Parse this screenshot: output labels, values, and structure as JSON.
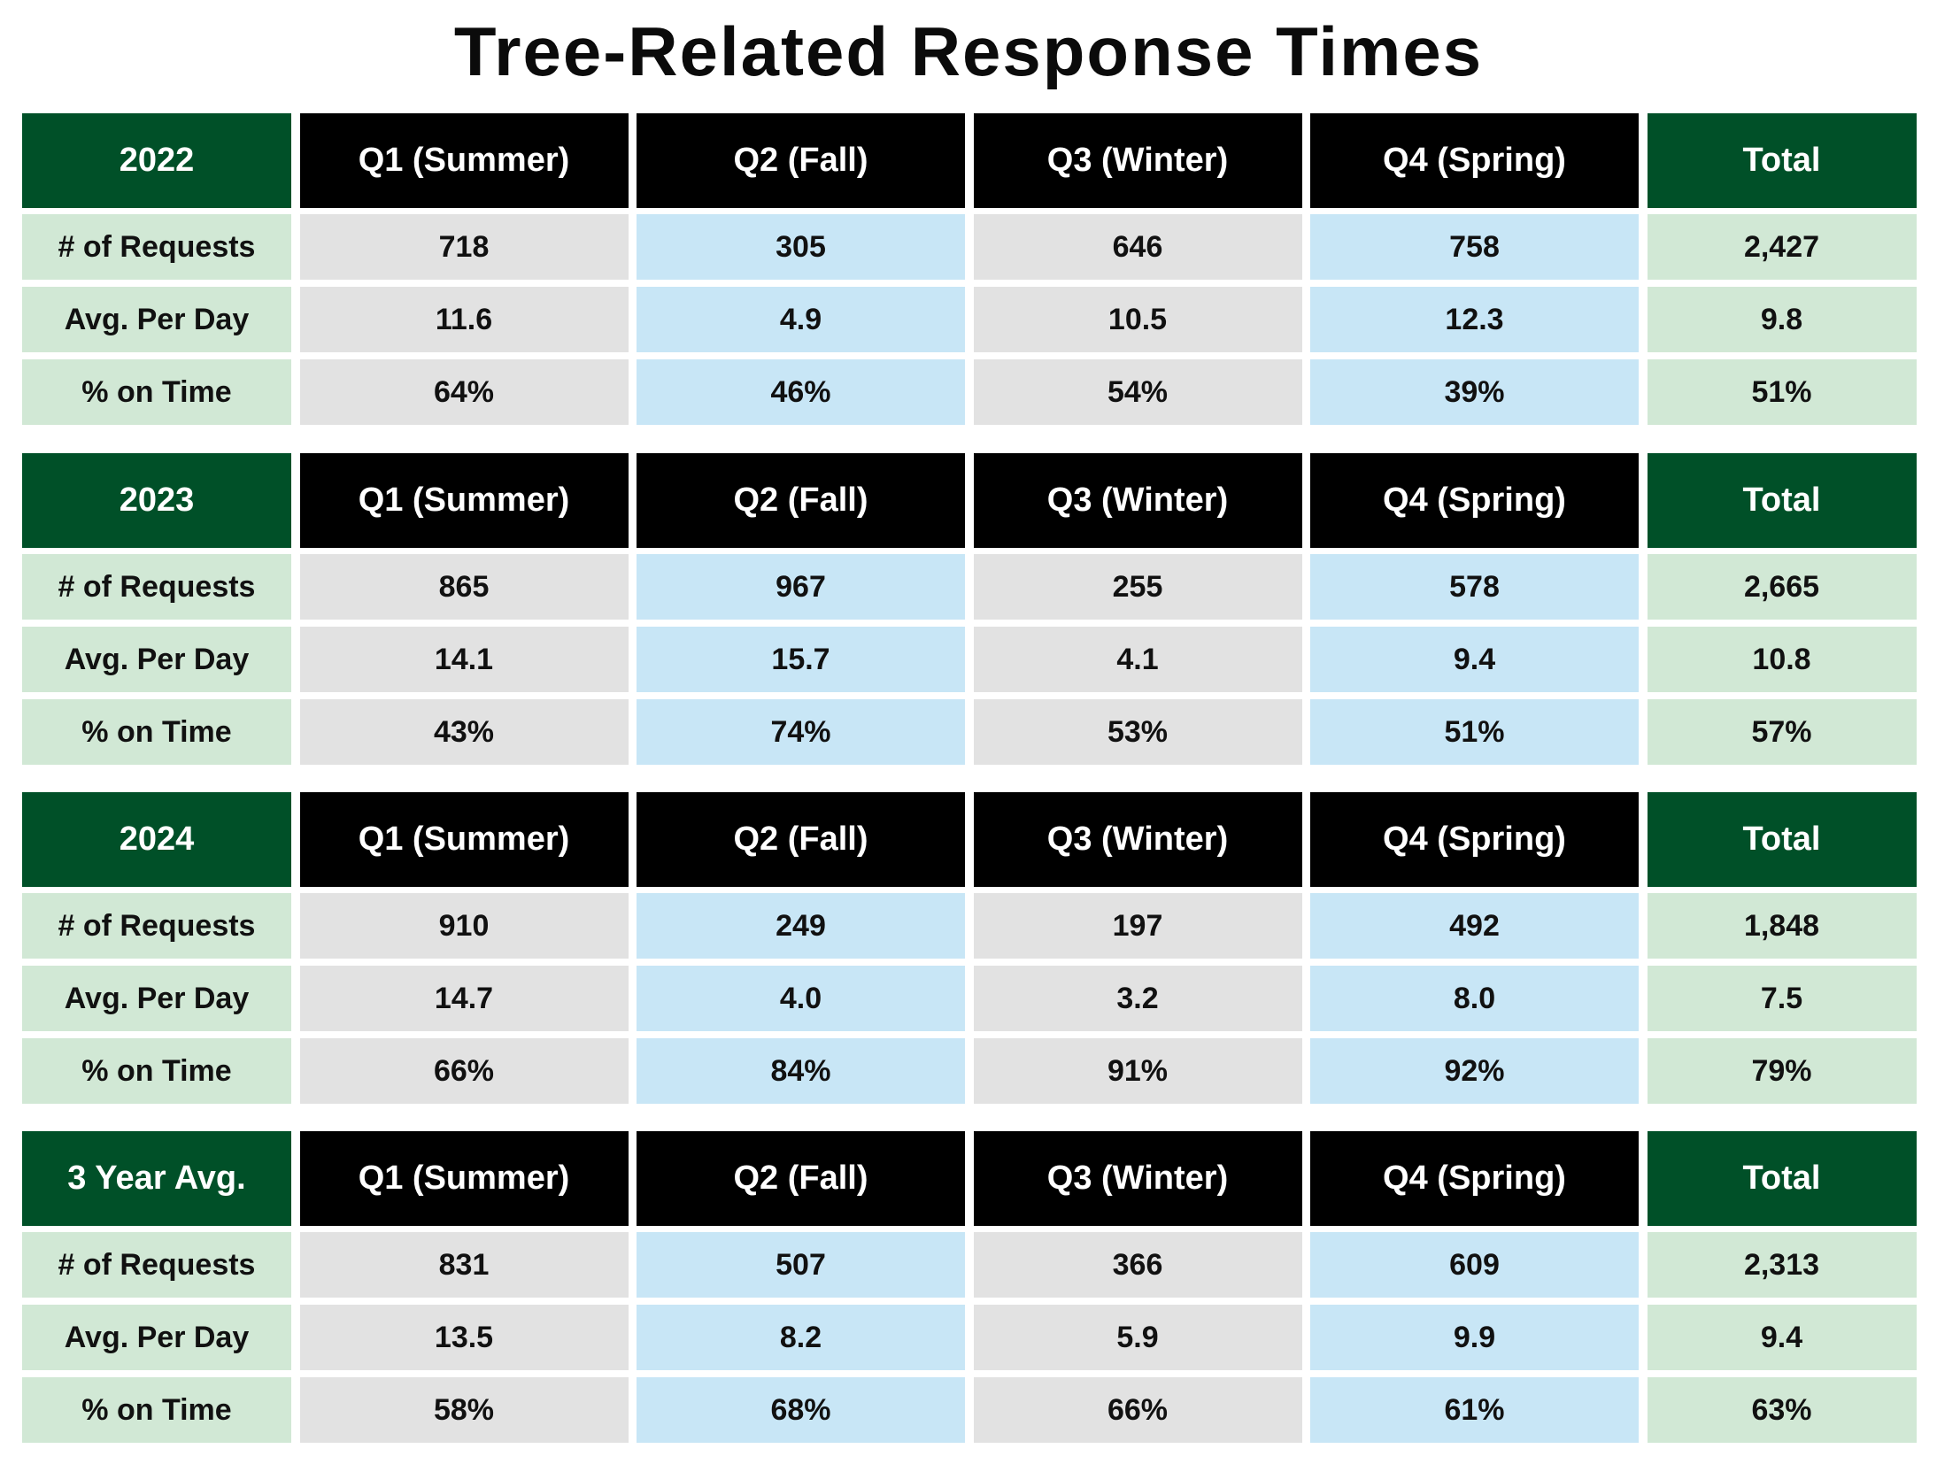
{
  "title": "Tree-Related Response Times",
  "colors": {
    "year_header_bg": "#005028",
    "quarter_header_bg": "#000000",
    "row_label_bg": "#d1e8d5",
    "odd_quarter_bg": "#e2e2e2",
    "even_quarter_bg": "#c8e6f6",
    "total_bg": "#d1e8d5"
  },
  "tables": [
    {
      "header": [
        "2022",
        "Q1 (Summer)",
        "Q2 (Fall)",
        "Q3 (Winter)",
        "Q4 (Spring)",
        "Total"
      ],
      "rows": [
        [
          "# of Requests",
          "718",
          "305",
          "646",
          "758",
          "2,427"
        ],
        [
          "Avg. Per Day",
          "11.6",
          "4.9",
          "10.5",
          "12.3",
          "9.8"
        ],
        [
          "% on Time",
          "64%",
          "46%",
          "54%",
          "39%",
          "51%"
        ]
      ]
    },
    {
      "header": [
        "2023",
        "Q1 (Summer)",
        "Q2 (Fall)",
        "Q3 (Winter)",
        "Q4 (Spring)",
        "Total"
      ],
      "rows": [
        [
          "# of Requests",
          "865",
          "967",
          "255",
          "578",
          "2,665"
        ],
        [
          "Avg. Per Day",
          "14.1",
          "15.7",
          "4.1",
          "9.4",
          "10.8"
        ],
        [
          "% on Time",
          "43%",
          "74%",
          "53%",
          "51%",
          "57%"
        ]
      ]
    },
    {
      "header": [
        "2024",
        "Q1 (Summer)",
        "Q2 (Fall)",
        "Q3 (Winter)",
        "Q4 (Spring)",
        "Total"
      ],
      "rows": [
        [
          "# of Requests",
          "910",
          "249",
          "197",
          "492",
          "1,848"
        ],
        [
          "Avg. Per Day",
          "14.7",
          "4.0",
          "3.2",
          "8.0",
          "7.5"
        ],
        [
          "% on Time",
          "66%",
          "84%",
          "91%",
          "92%",
          "79%"
        ]
      ]
    },
    {
      "header": [
        "3 Year Avg.",
        "Q1 (Summer)",
        "Q2 (Fall)",
        "Q3 (Winter)",
        "Q4 (Spring)",
        "Total"
      ],
      "rows": [
        [
          "# of Requests",
          "831",
          "507",
          "366",
          "609",
          "2,313"
        ],
        [
          "Avg. Per Day",
          "13.5",
          "8.2",
          "5.9",
          "9.9",
          "9.4"
        ],
        [
          "% on Time",
          "58%",
          "68%",
          "66%",
          "61%",
          "63%"
        ]
      ]
    }
  ]
}
